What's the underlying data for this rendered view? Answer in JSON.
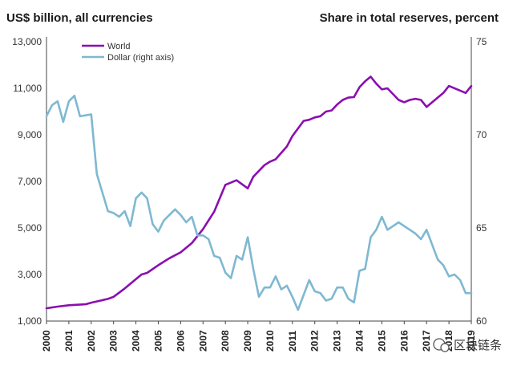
{
  "chart_data": {
    "type": "line",
    "left_axis_title": "US$ billion, all currencies",
    "right_axis_title": "Share in total reserves, percent",
    "left_ylim": [
      1000,
      13000
    ],
    "left_ticks": [
      "1,000",
      "3,000",
      "5,000",
      "7,000",
      "9,000",
      "11,000",
      "13,000"
    ],
    "left_tick_values": [
      1000,
      3000,
      5000,
      7000,
      9000,
      11000,
      13000
    ],
    "right_ylim": [
      60,
      75
    ],
    "right_ticks": [
      "60",
      "65",
      "70",
      "75"
    ],
    "right_tick_values": [
      60,
      65,
      70,
      75
    ],
    "x_ticks": [
      "2000",
      "2001",
      "2002",
      "2003",
      "2004",
      "2005",
      "2006",
      "2007",
      "2008",
      "2009",
      "2010",
      "2011",
      "2012",
      "2013",
      "2014",
      "2015",
      "2016",
      "2017",
      "2018",
      "2019"
    ],
    "xlim": [
      2000,
      2019
    ],
    "series": [
      {
        "name": "World",
        "axis": "left",
        "color": "#8a0fb0",
        "x": [
          2000,
          2000.5,
          2001,
          2001.75,
          2002,
          2002.75,
          2003,
          2003.5,
          2004,
          2004.25,
          2004.5,
          2005,
          2005.5,
          2006,
          2006.5,
          2007,
          2007.5,
          2008,
          2008.5,
          2009,
          2009.25,
          2009.75,
          2010,
          2010.25,
          2010.75,
          2011,
          2011.5,
          2011.75,
          2012,
          2012.25,
          2012.5,
          2012.75,
          2013,
          2013.25,
          2013.5,
          2013.75,
          2014,
          2014.25,
          2014.5,
          2014.75,
          2015,
          2015.25,
          2015.75,
          2016,
          2016.25,
          2016.5,
          2016.75,
          2017,
          2017.25,
          2017.75,
          2018,
          2018.5,
          2018.75,
          2019
        ],
        "values": [
          1550,
          1620,
          1680,
          1720,
          1790,
          1950,
          2040,
          2400,
          2800,
          3000,
          3070,
          3400,
          3700,
          3950,
          4350,
          4950,
          5700,
          6850,
          7050,
          6700,
          7200,
          7700,
          7850,
          7950,
          8500,
          8950,
          9600,
          9650,
          9750,
          9800,
          10000,
          10050,
          10300,
          10500,
          10600,
          10620,
          11050,
          11300,
          11500,
          11200,
          10950,
          11000,
          10500,
          10400,
          10500,
          10550,
          10500,
          10200,
          10400,
          10800,
          11100,
          10900,
          10800,
          11100
        ]
      },
      {
        "name": "Dollar (right axis)",
        "axis": "right",
        "color": "#7fb8d1",
        "x": [
          2000,
          2000.25,
          2000.5,
          2000.75,
          2001,
          2001.25,
          2001.5,
          2002,
          2002.25,
          2002.75,
          2003,
          2003.25,
          2003.5,
          2003.75,
          2004,
          2004.25,
          2004.5,
          2004.75,
          2005,
          2005.25,
          2005.75,
          2006,
          2006.25,
          2006.5,
          2006.75,
          2007,
          2007.25,
          2007.5,
          2007.75,
          2008,
          2008.25,
          2008.5,
          2008.75,
          2009,
          2009.25,
          2009.5,
          2009.75,
          2010,
          2010.25,
          2010.5,
          2010.75,
          2011,
          2011.25,
          2011.5,
          2011.75,
          2012,
          2012.25,
          2012.5,
          2012.75,
          2013,
          2013.25,
          2013.5,
          2013.75,
          2014,
          2014.25,
          2014.5,
          2014.75,
          2015,
          2015.25,
          2015.5,
          2015.75,
          2016,
          2016.25,
          2016.5,
          2016.75,
          2017,
          2017.25,
          2017.5,
          2017.75,
          2018,
          2018.25,
          2018.5,
          2018.75,
          2019
        ],
        "values": [
          71.0,
          71.6,
          71.8,
          70.7,
          71.8,
          72.1,
          71.0,
          71.1,
          67.9,
          65.9,
          65.8,
          65.6,
          65.9,
          65.1,
          66.6,
          66.9,
          66.6,
          65.2,
          64.8,
          65.4,
          66.0,
          65.7,
          65.3,
          65.6,
          64.6,
          64.6,
          64.4,
          63.5,
          63.4,
          62.6,
          62.3,
          63.5,
          63.3,
          64.5,
          62.8,
          61.3,
          61.8,
          61.8,
          62.4,
          61.7,
          61.9,
          61.3,
          60.6,
          61.4,
          62.2,
          61.6,
          61.5,
          61.1,
          61.2,
          61.8,
          61.8,
          61.2,
          61.0,
          62.7,
          62.8,
          64.5,
          64.9,
          65.6,
          64.9,
          65.1,
          65.3,
          65.1,
          64.9,
          64.7,
          64.4,
          64.9,
          64.1,
          63.3,
          63.0,
          62.4,
          62.5,
          62.2,
          61.5,
          61.5
        ]
      }
    ]
  },
  "watermark": "区块链条"
}
